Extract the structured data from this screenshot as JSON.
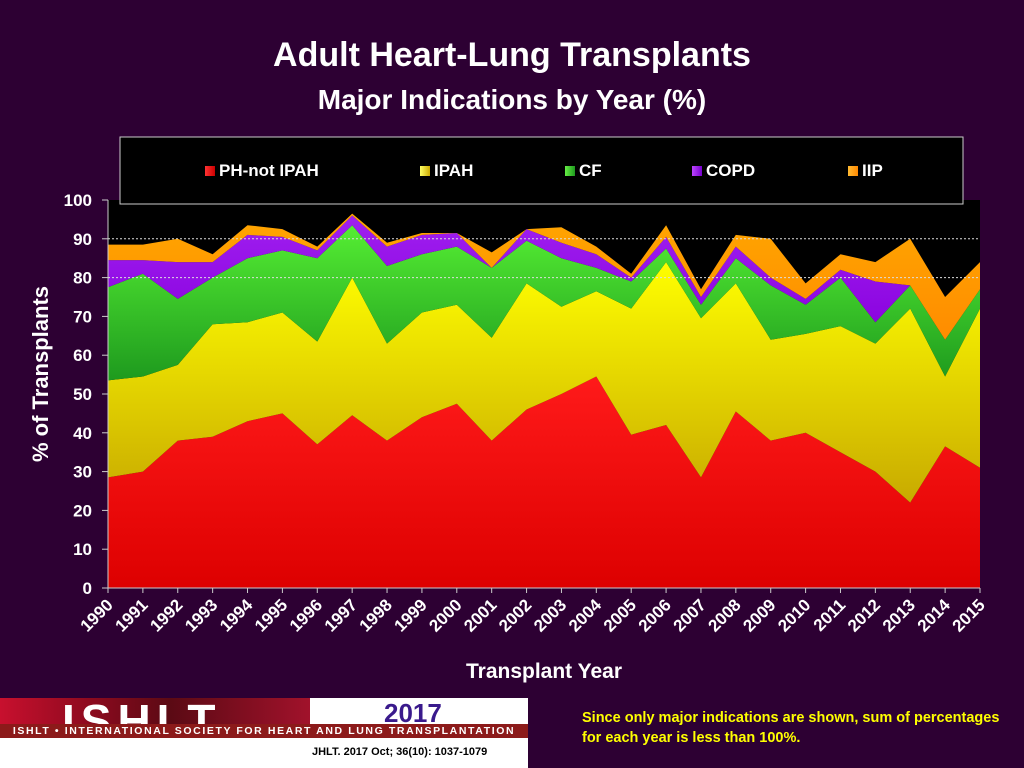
{
  "title": "Adult Heart-Lung Transplants",
  "subtitle": "Major Indications by Year (%)",
  "footer": {
    "logo_text": "ISHLT",
    "org_name": "ISHLT • INTERNATIONAL SOCIETY FOR HEART AND LUNG TRANSPLANTATION",
    "year": "2017",
    "citation": "JHLT. 2017 Oct; 36(10): 1037-1079",
    "note": "Since only major indications are shown, sum of percentages for each year is less than 100%."
  },
  "colors": {
    "background": "#2d0033",
    "plot_background": "#000000",
    "text": "#ffffff",
    "note": "#ffff00"
  },
  "chart_data": {
    "type": "area",
    "stacked": true,
    "title": "Adult Heart-Lung Transplants",
    "subtitle": "Major Indications by Year (%)",
    "xlabel": "Transplant Year",
    "ylabel": "% of Transplants",
    "ylim": [
      0,
      100
    ],
    "yticks": [
      0,
      10,
      20,
      30,
      40,
      50,
      60,
      70,
      80,
      90,
      100
    ],
    "grid": "dashed horizontal at 80, 90",
    "legend_position": "top",
    "x": [
      "1990",
      "1991",
      "1992",
      "1993",
      "1994",
      "1995",
      "1996",
      "1997",
      "1998",
      "1999",
      "2000",
      "2001",
      "2002",
      "2003",
      "2004",
      "2005",
      "2006",
      "2007",
      "2008",
      "2009",
      "2010",
      "2011",
      "2012",
      "2013",
      "2014",
      "2015"
    ],
    "series": [
      {
        "name": "PH-not IPAH",
        "color": "#ee0000",
        "values": [
          28.5,
          30,
          38,
          39,
          43,
          45,
          37,
          44.5,
          38,
          44,
          47.5,
          38,
          46,
          50,
          54.5,
          39.5,
          42,
          28.5,
          45.5,
          38,
          40,
          35,
          30,
          22,
          36.5,
          31
        ]
      },
      {
        "name": "IPAH",
        "color": "#eeee00",
        "values": [
          25,
          24.5,
          19.5,
          29,
          25.5,
          26,
          26.5,
          35.5,
          25,
          27,
          25.5,
          26.5,
          32.5,
          22.5,
          22,
          32.5,
          42,
          41,
          33,
          26,
          25.5,
          32.5,
          33,
          50,
          18,
          41
        ]
      },
      {
        "name": "CF",
        "color": "#33cc33",
        "values": [
          24,
          26.5,
          17,
          12,
          16.5,
          16,
          21.5,
          13.5,
          20,
          15,
          15,
          18,
          11,
          12.5,
          6,
          7,
          3.5,
          3.5,
          6.5,
          14,
          7.5,
          12.5,
          5.5,
          6,
          9.5,
          5
        ]
      },
      {
        "name": "COPD",
        "color": "#9900ff",
        "values": [
          7,
          3.5,
          9.5,
          4,
          6,
          3.5,
          2,
          2.5,
          5,
          5,
          3.5,
          0,
          3,
          4,
          3.5,
          1,
          3,
          2,
          3,
          2,
          1.5,
          2,
          10.5,
          0,
          0,
          0
        ]
      },
      {
        "name": "IIP",
        "color": "#ff9900",
        "values": [
          4,
          4,
          6,
          2,
          2.5,
          2,
          1,
          0.5,
          1,
          0.5,
          0,
          4,
          0,
          4,
          2,
          1,
          3,
          2,
          3,
          10,
          4,
          4,
          5,
          12,
          11,
          7
        ]
      }
    ]
  }
}
